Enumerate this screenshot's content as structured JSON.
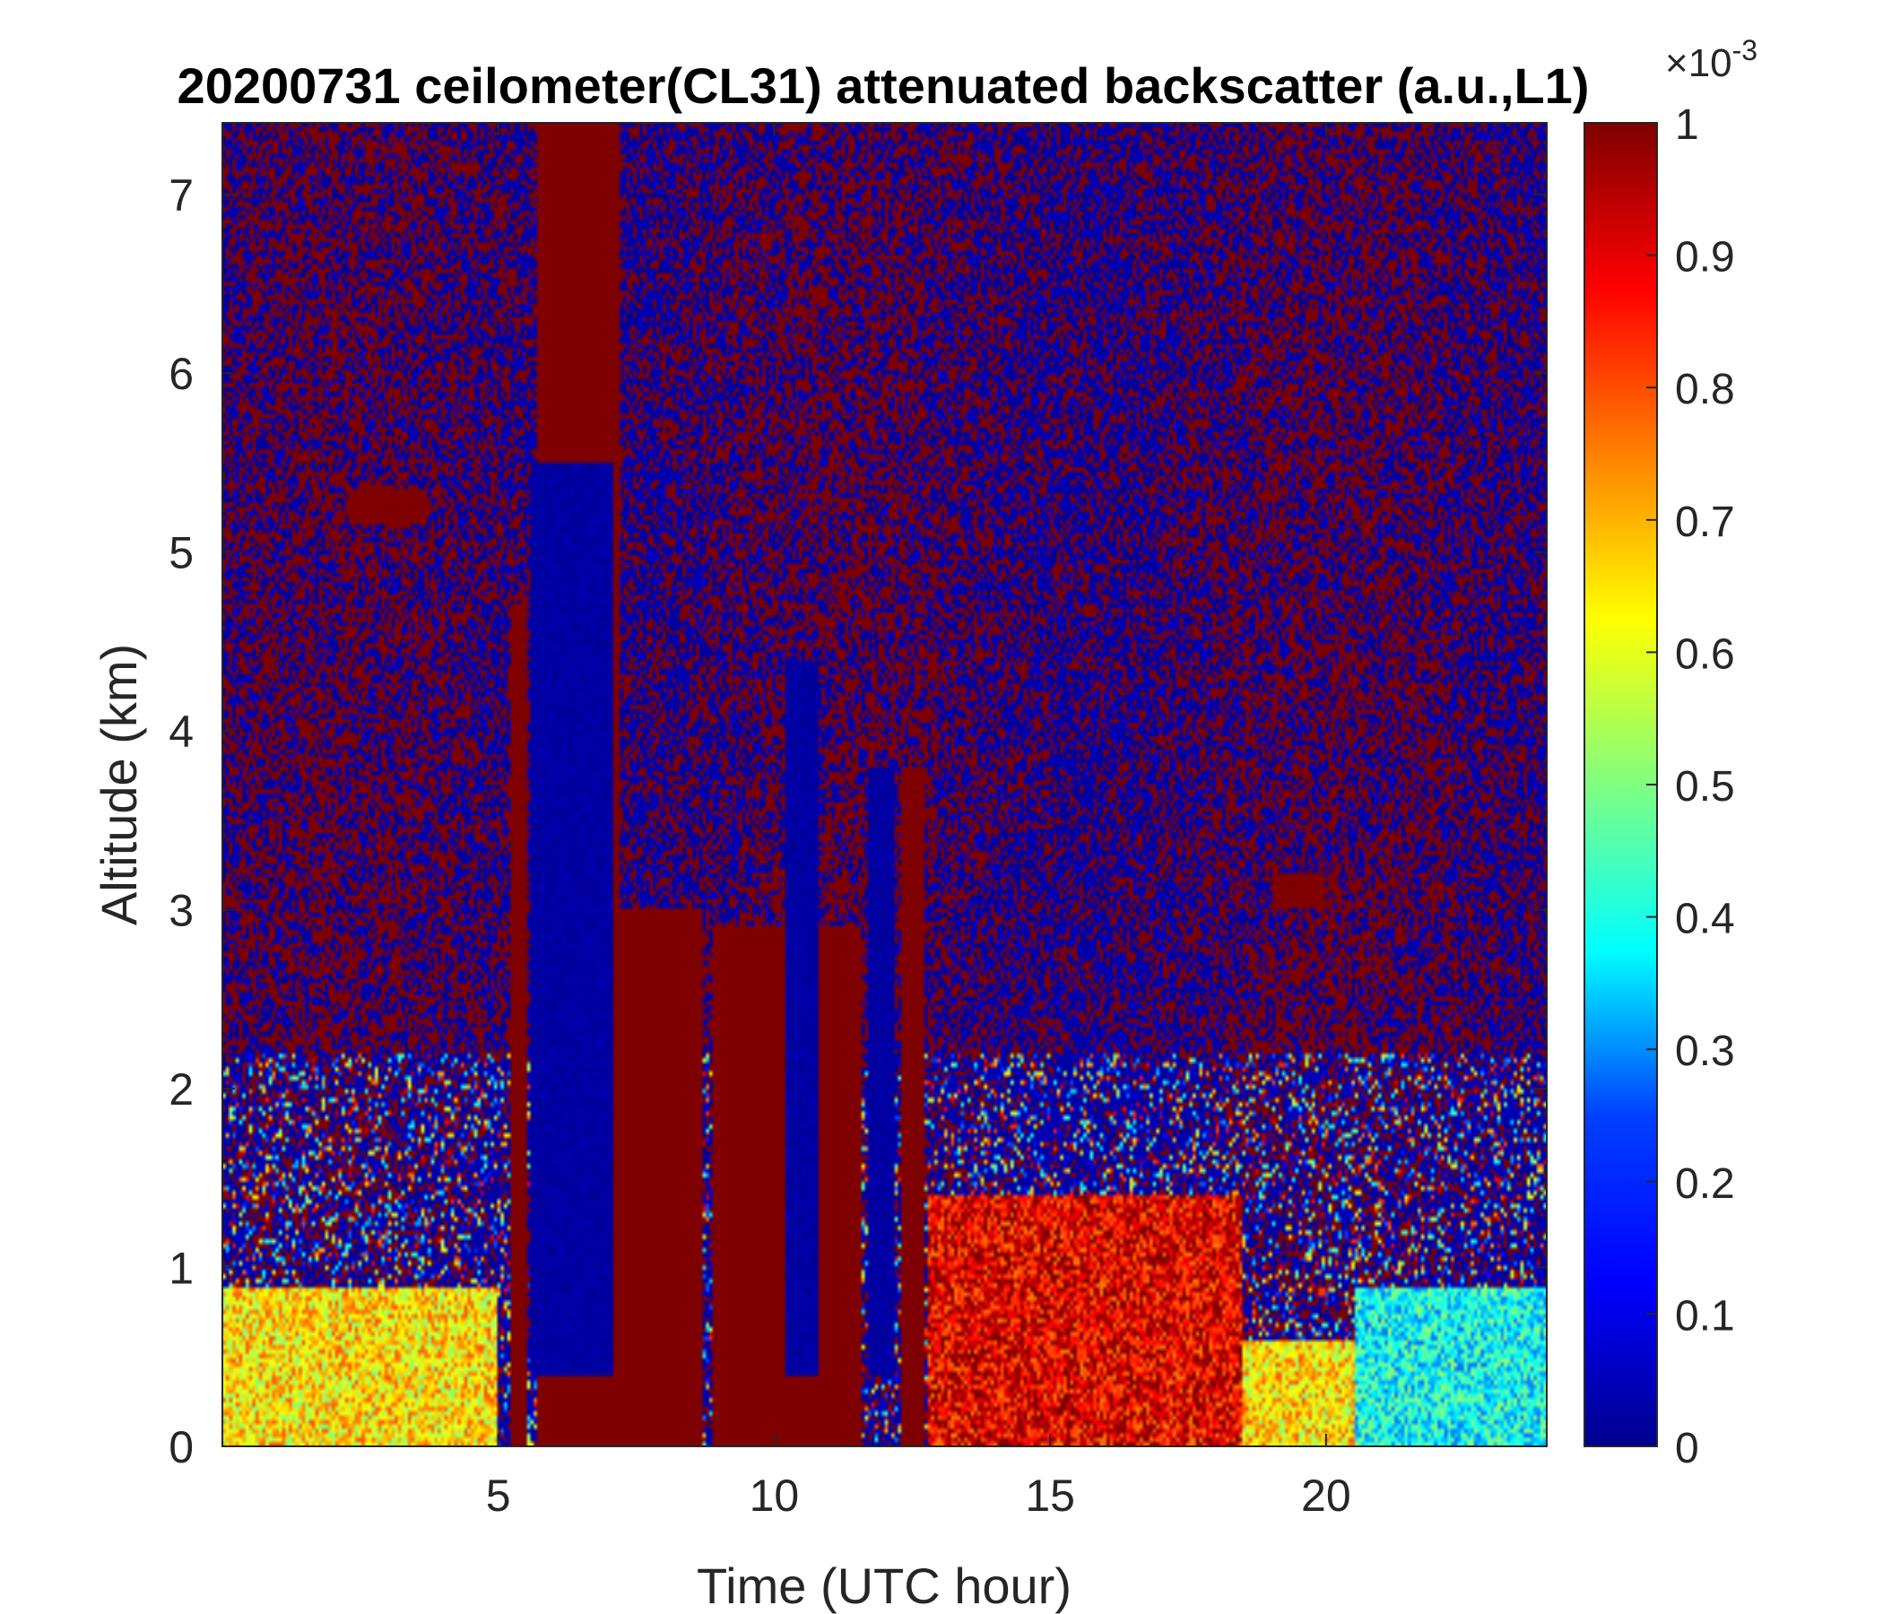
{
  "chart_data": {
    "type": "heatmap",
    "title": "20200731 ceilometer(CL31) attenuated backscatter (a.u.,L1)",
    "xlabel": "Time (UTC hour)",
    "ylabel": "Altitude (km)",
    "xlim": [
      0,
      24
    ],
    "ylim": [
      0,
      7.4
    ],
    "x_ticks": [
      5,
      10,
      15,
      20
    ],
    "y_ticks": [
      0,
      1,
      2,
      3,
      4,
      5,
      6,
      7
    ],
    "colorbar": {
      "label": "",
      "exponent_base": "×10",
      "exponent_power": "-3",
      "range": [
        0,
        1
      ],
      "ticks": [
        0,
        0.1,
        0.2,
        0.3,
        0.4,
        0.5,
        0.6,
        0.7,
        0.8,
        0.9,
        1
      ],
      "tick_labels": [
        "0",
        "0.1",
        "0.2",
        "0.3",
        "0.4",
        "0.5",
        "0.6",
        "0.7",
        "0.8",
        "0.9",
        "1"
      ],
      "colormap": "jet",
      "colors": [
        "#00008F",
        "#0000FF",
        "#0080FF",
        "#00FFFF",
        "#80FF80",
        "#FFFF00",
        "#FF8000",
        "#FF0000",
        "#800000"
      ]
    },
    "features": [
      {
        "kind": "background_noise",
        "x": [
          0,
          24
        ],
        "y": [
          1.5,
          7.4
        ],
        "value_range": [
          0,
          1
        ],
        "description_value": "mixed low/saturated"
      },
      {
        "kind": "boundary_layer",
        "x": [
          0,
          5
        ],
        "y": [
          0,
          0.9
        ],
        "value": 0.65
      },
      {
        "kind": "boundary_layer",
        "x": [
          12.8,
          18.5
        ],
        "y": [
          0,
          1.4
        ],
        "value": 0.9
      },
      {
        "kind": "boundary_layer",
        "x": [
          18.5,
          20.5
        ],
        "y": [
          0,
          0.6
        ],
        "value": 0.65
      },
      {
        "kind": "boundary_layer",
        "x": [
          20.5,
          24
        ],
        "y": [
          0,
          0.9
        ],
        "value": 0.38
      },
      {
        "kind": "cloud_column",
        "x": [
          5.2,
          5.5
        ],
        "y": [
          0,
          4.7
        ],
        "value": 1
      },
      {
        "kind": "cloud_column",
        "x": [
          5.7,
          7.2
        ],
        "y": [
          0,
          7.4
        ],
        "value": 1
      },
      {
        "kind": "cloud_column",
        "x": [
          7.0,
          8.7
        ],
        "y": [
          0,
          3.0
        ],
        "value": 1
      },
      {
        "kind": "cloud_column",
        "x": [
          8.9,
          11.6
        ],
        "y": [
          0,
          2.9
        ],
        "value": 1
      },
      {
        "kind": "cloud_column",
        "x": [
          12.3,
          12.7
        ],
        "y": [
          0,
          3.8
        ],
        "value": 1
      },
      {
        "kind": "cloud_layer",
        "x": [
          2.3,
          3.7
        ],
        "y": [
          5.15,
          5.35
        ],
        "value": 1
      },
      {
        "kind": "cloud_layer",
        "x": [
          19.0,
          20.0
        ],
        "y": [
          3.0,
          3.2
        ],
        "value": 1
      },
      {
        "kind": "attenuated_region",
        "x": [
          5.6,
          7.1
        ],
        "y": [
          0.4,
          5.5
        ],
        "value": 0.02
      },
      {
        "kind": "attenuated_region",
        "x": [
          10.2,
          10.8
        ],
        "y": [
          0.4,
          4.4
        ],
        "value": 0.02
      },
      {
        "kind": "attenuated_region",
        "x": [
          11.7,
          12.2
        ],
        "y": [
          0.4,
          3.8
        ],
        "value": 0.02
      }
    ]
  }
}
